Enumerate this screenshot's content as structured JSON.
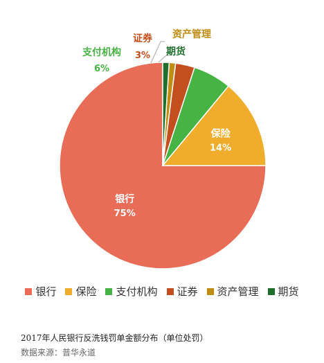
{
  "chart_data": {
    "type": "pie",
    "title": "",
    "series": [
      {
        "name": "银行",
        "value": 75,
        "label": "75%",
        "color": "#E96C57"
      },
      {
        "name": "保险",
        "value": 14,
        "label": "14%",
        "color": "#F0AD2C"
      },
      {
        "name": "支付机构",
        "value": 6,
        "label": "6%",
        "color": "#46B444"
      },
      {
        "name": "证券",
        "value": 3,
        "label": "3%",
        "color": "#C44F1E"
      },
      {
        "name": "资产管理",
        "value": 1,
        "label": "",
        "color": "#C18C12"
      },
      {
        "name": "期货",
        "value": 1,
        "label": "",
        "color": "#1F6E2C"
      }
    ],
    "label_colors": [
      "#ffffff",
      "#ffffff",
      "#46B444",
      "#C44F1E",
      "#C18C12",
      "#1F6E2C"
    ],
    "legend_position": "bottom",
    "start": "top",
    "direction": "clockwise-reversed"
  },
  "caption": {
    "title": "2017年人民银行反洗钱罚单金额分布（单位处罚）",
    "source": "数据来源：普华永道"
  }
}
